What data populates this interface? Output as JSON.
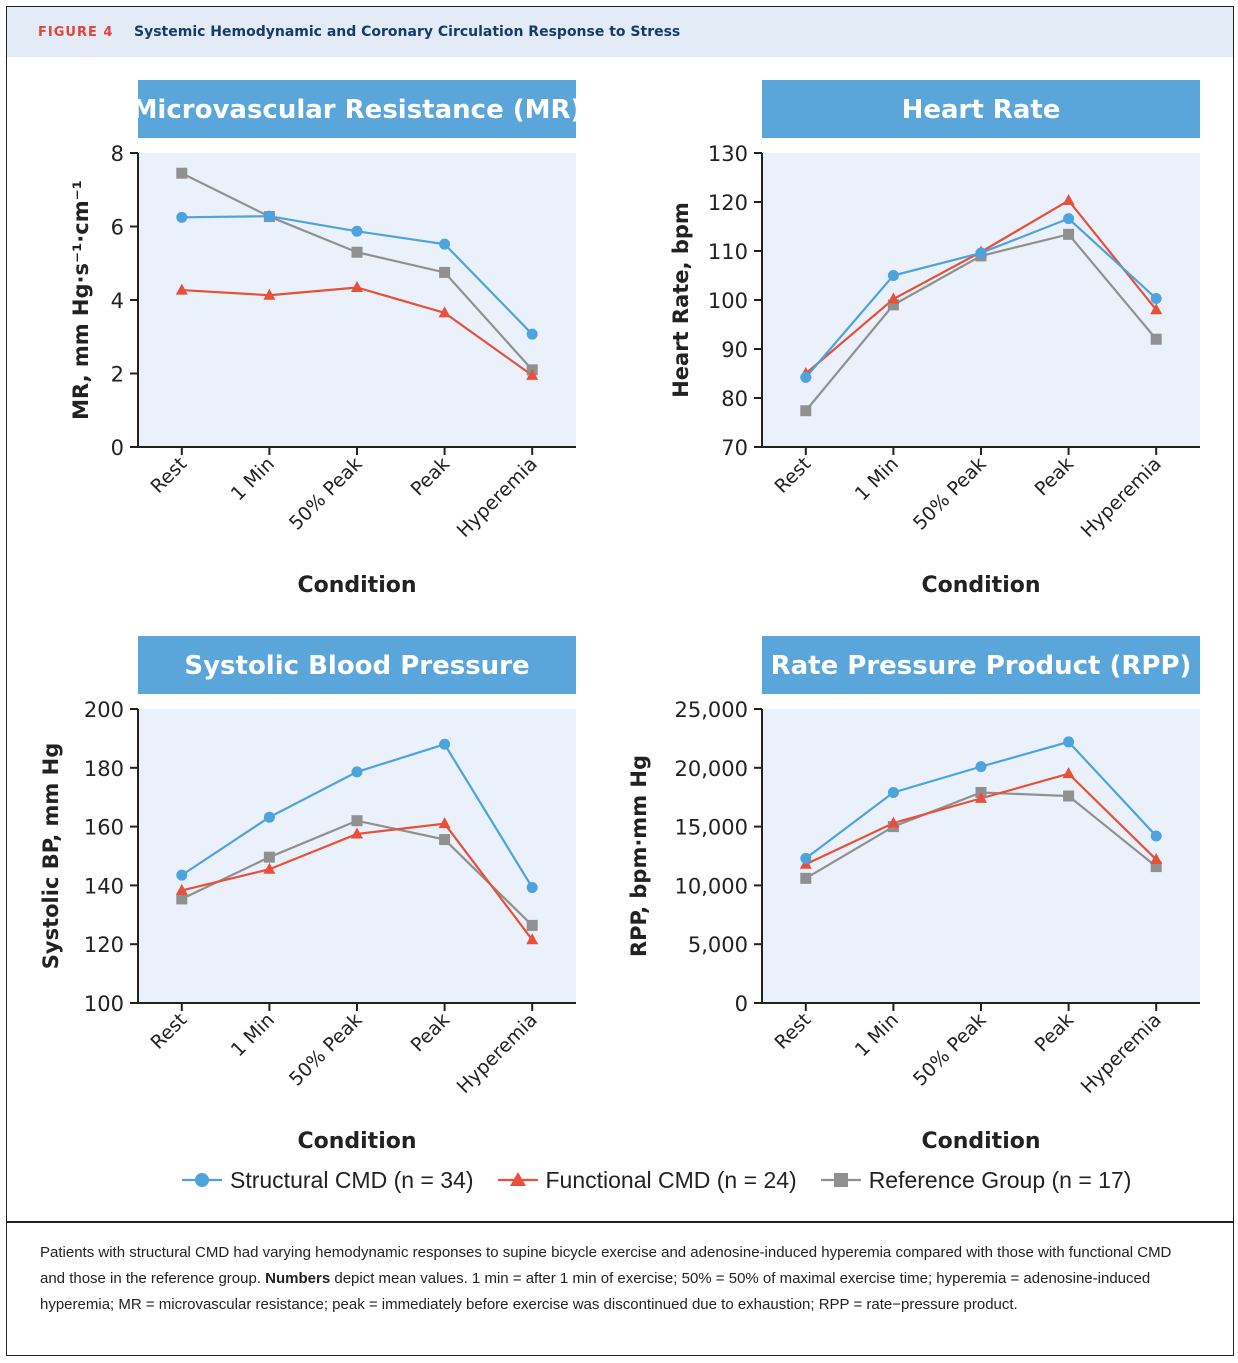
{
  "header": {
    "figure_label": "FIGURE 4",
    "figure_title": "Systemic Hemodynamic and Coronary Circulation Response to Stress"
  },
  "colors": {
    "structural": "#4da3de",
    "functional": "#e8503a",
    "reference": "#909090",
    "panel_title": "#5aa6db",
    "plot_background": "#eaf1fa"
  },
  "legend": [
    {
      "label": "Structural CMD (n = 34)",
      "color": "#4da3de",
      "marker": "circle"
    },
    {
      "label": "Functional CMD (n = 24)",
      "color": "#e8503a",
      "marker": "triangle"
    },
    {
      "label": "Reference Group (n = 17)",
      "color": "#909090",
      "marker": "square"
    }
  ],
  "chart_data": [
    {
      "type": "line",
      "title": "Microvascular Resistance (MR)",
      "xlabel": "Condition",
      "ylabel": "MR, mm Hg·s⁻¹·cm⁻¹",
      "categories": [
        "Rest",
        "1 Min",
        "50% Peak",
        "Peak",
        "Hyperemia"
      ],
      "ylim": [
        0,
        8
      ],
      "yticks": [
        0,
        2,
        4,
        6,
        8
      ],
      "ytick_labels": [
        "0",
        "2",
        "4",
        "6",
        "8"
      ],
      "grid": false,
      "series": [
        {
          "name": "Structural CMD (n = 34)",
          "values": [
            6.25,
            6.28,
            5.87,
            5.52,
            3.07
          ]
        },
        {
          "name": "Functional CMD (n = 24)",
          "values": [
            4.27,
            4.13,
            4.34,
            3.65,
            1.95
          ]
        },
        {
          "name": "Reference Group (n = 17)",
          "values": [
            7.45,
            6.27,
            5.3,
            4.75,
            2.1
          ]
        }
      ]
    },
    {
      "type": "line",
      "title": "Heart Rate",
      "xlabel": "Condition",
      "ylabel": "Heart Rate, bpm",
      "categories": [
        "Rest",
        "1 Min",
        "50% Peak",
        "Peak",
        "Hyperemia"
      ],
      "ylim": [
        70,
        130
      ],
      "yticks": [
        70,
        80,
        90,
        100,
        110,
        120,
        130
      ],
      "ytick_labels": [
        "70",
        "80",
        "90",
        "100",
        "110",
        "120",
        "130"
      ],
      "grid": false,
      "series": [
        {
          "name": "Structural CMD (n = 34)",
          "values": [
            84.2,
            105,
            109.6,
            116.6,
            100.3
          ]
        },
        {
          "name": "Functional CMD (n = 24)",
          "values": [
            85,
            100.2,
            109.8,
            120.3,
            98
          ]
        },
        {
          "name": "Reference Group (n = 17)",
          "values": [
            77.4,
            99,
            109,
            113.4,
            92
          ]
        }
      ]
    },
    {
      "type": "line",
      "title": "Systolic Blood Pressure",
      "xlabel": "Condition",
      "ylabel": "Systolic BP, mm Hg",
      "categories": [
        "Rest",
        "1 Min",
        "50% Peak",
        "Peak",
        "Hyperemia"
      ],
      "ylim": [
        100,
        200
      ],
      "yticks": [
        100,
        120,
        140,
        160,
        180,
        200
      ],
      "ytick_labels": [
        "100",
        "120",
        "140",
        "160",
        "180",
        "200"
      ],
      "grid": false,
      "series": [
        {
          "name": "Structural CMD (n = 34)",
          "values": [
            143.5,
            163.2,
            178.6,
            188,
            139.3
          ]
        },
        {
          "name": "Functional CMD (n = 24)",
          "values": [
            138.3,
            145.5,
            157.5,
            161,
            121.5
          ]
        },
        {
          "name": "Reference Group (n = 17)",
          "values": [
            135.4,
            149.6,
            162,
            155.6,
            126.4
          ]
        }
      ]
    },
    {
      "type": "line",
      "title": "Rate Pressure Product (RPP)",
      "xlabel": "Condition",
      "ylabel": "RPP, bpm·mm Hg",
      "categories": [
        "Rest",
        "1 Min",
        "50% Peak",
        "Peak",
        "Hyperemia"
      ],
      "ylim": [
        0,
        25000
      ],
      "yticks": [
        0,
        5000,
        10000,
        15000,
        20000,
        25000
      ],
      "ytick_labels": [
        "0",
        "5,000",
        "10,000",
        "15,000",
        "20,000",
        "25,000"
      ],
      "grid": false,
      "series": [
        {
          "name": "Structural CMD (n = 34)",
          "values": [
            12300,
            17900,
            20100,
            22200,
            14200
          ]
        },
        {
          "name": "Functional CMD (n = 24)",
          "values": [
            11800,
            15300,
            17400,
            19500,
            12200
          ]
        },
        {
          "name": "Reference Group (n = 17)",
          "values": [
            10600,
            15000,
            17900,
            17600,
            11600
          ]
        }
      ]
    }
  ],
  "caption": {
    "part1": "Patients with structural CMD had varying hemodynamic responses to supine bicycle exercise and adenosine-induced hyperemia compared with those with functional CMD and those in the reference group. ",
    "bold": "Numbers",
    "part2": " depict mean values. 1 min = after 1 min of exercise; 50% = 50% of maximal exercise time; hyperemia = adenosine-induced hyperemia; MR = microvascular resistance; peak = immediately before exercise was discontinued due to exhaustion; RPP = rate−pressure product."
  }
}
